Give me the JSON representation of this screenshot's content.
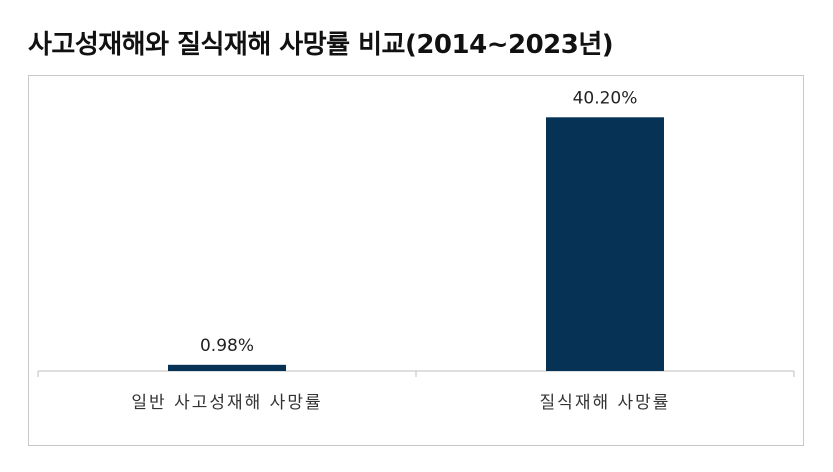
{
  "title": "사고성재해와 질식재해 사망률 비교(2014~2023년)",
  "chart_data": {
    "type": "bar",
    "title": "사고성재해와 질식재해 사망률 비교(2014~2023년)",
    "categories": [
      "일반 사고성재해 사망률",
      "질식재해 사망률"
    ],
    "values": [
      0.98,
      40.2
    ],
    "value_labels": [
      "0.98%",
      "40.20%"
    ],
    "ylim": [
      0,
      45
    ],
    "grid": false,
    "bar_color": "#063256"
  }
}
